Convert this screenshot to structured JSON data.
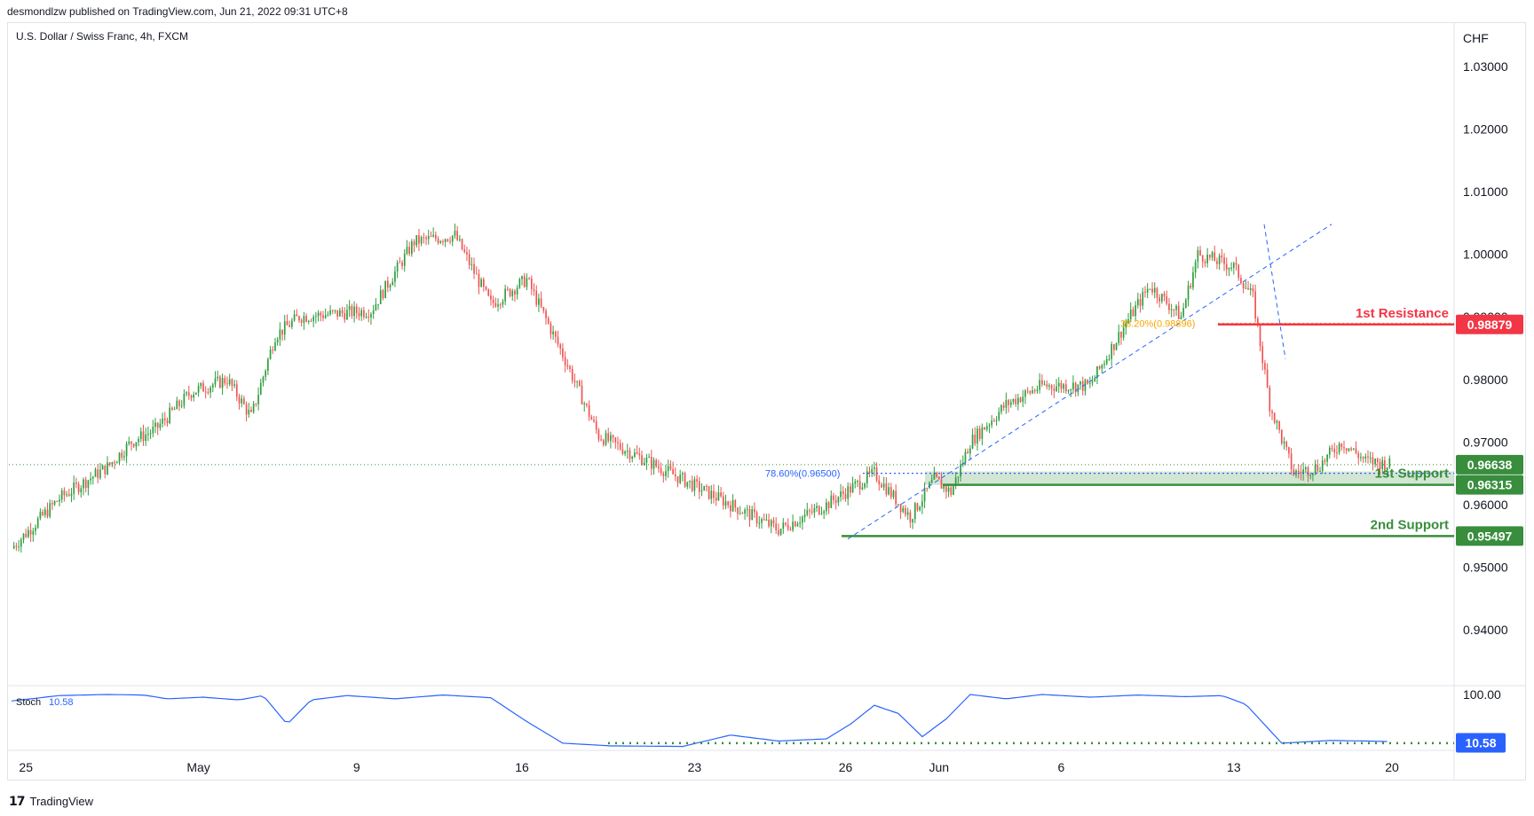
{
  "header": {
    "published": "desmondlzw published on TradingView.com, Jun 21, 2022 09:31 UTC+8",
    "symbol": "U.S. Dollar / Swiss Franc, 4h, FXCM"
  },
  "footer": {
    "brand": "TradingView"
  },
  "colors": {
    "up": "#26a69a",
    "up_body": "#2e9e3d",
    "down": "#ef5350",
    "resistance": "#f23645",
    "support": "#388e3c",
    "fib": "#2962ff",
    "stoch": "#2962ff"
  },
  "chart_data": {
    "type": "candlestick",
    "currency": "CHF",
    "y_axis": {
      "range": [
        0.9385,
        1.0385
      ],
      "ticks": [
        "1.03000",
        "1.02000",
        "1.01000",
        "1.00000",
        "0.99000",
        "0.98000",
        "0.97000",
        "0.96000",
        "0.95000",
        "0.94000"
      ]
    },
    "x_axis": {
      "labels": [
        "25",
        "May",
        "9",
        "16",
        "23",
        "26",
        "Jun",
        "6",
        "13",
        "20"
      ]
    },
    "series_anchor_closes": [
      [
        0,
        0.953
      ],
      [
        20,
        0.961
      ],
      [
        40,
        0.966
      ],
      [
        50,
        0.97
      ],
      [
        60,
        0.972
      ],
      [
        75,
        0.978
      ],
      [
        90,
        0.98
      ],
      [
        100,
        0.974
      ],
      [
        110,
        0.987
      ],
      [
        120,
        0.99
      ],
      [
        150,
        0.991
      ],
      [
        168,
        1.002
      ],
      [
        185,
        1.003
      ],
      [
        200,
        0.992
      ],
      [
        215,
        0.996
      ],
      [
        230,
        0.984
      ],
      [
        245,
        0.971
      ],
      [
        260,
        0.968
      ],
      [
        280,
        0.964
      ],
      [
        300,
        0.96
      ],
      [
        320,
        0.956
      ],
      [
        340,
        0.96
      ],
      [
        360,
        0.965
      ],
      [
        375,
        0.958
      ],
      [
        385,
        0.964
      ],
      [
        392,
        0.962
      ],
      [
        400,
        0.97
      ],
      [
        415,
        0.976
      ],
      [
        430,
        0.979
      ],
      [
        450,
        0.979
      ],
      [
        465,
        0.989
      ],
      [
        475,
        0.995
      ],
      [
        488,
        0.99
      ],
      [
        495,
        1.0
      ],
      [
        510,
        0.998
      ],
      [
        518,
        0.993
      ],
      [
        525,
        0.976
      ],
      [
        535,
        0.965
      ],
      [
        545,
        0.966
      ],
      [
        555,
        0.97
      ],
      [
        565,
        0.967
      ],
      [
        575,
        0.9664
      ]
    ],
    "current_price": "0.96638",
    "levels": [
      {
        "label": "1st Resistance",
        "price": "0.98879"
      },
      {
        "label": "1st Support",
        "price": "0.96315"
      },
      {
        "label": "2nd Support",
        "price": "0.95497"
      }
    ],
    "fib_levels": [
      {
        "label": "78.60%(0.96500)",
        "price": 0.965
      },
      {
        "label": "38.20%(0.98896)",
        "price": 0.98896
      }
    ],
    "stochastic": {
      "name": "Stoch",
      "value": "10.58",
      "range": [
        0,
        100
      ],
      "axis_label": "100.00",
      "oversold_level": 10,
      "anchors": [
        [
          0,
          88
        ],
        [
          20,
          98
        ],
        [
          40,
          100
        ],
        [
          55,
          99
        ],
        [
          65,
          92
        ],
        [
          80,
          95
        ],
        [
          95,
          90
        ],
        [
          105,
          98
        ],
        [
          115,
          45
        ],
        [
          125,
          90
        ],
        [
          140,
          98
        ],
        [
          160,
          92
        ],
        [
          180,
          99
        ],
        [
          200,
          94
        ],
        [
          215,
          50
        ],
        [
          230,
          10
        ],
        [
          250,
          5
        ],
        [
          280,
          4
        ],
        [
          300,
          25
        ],
        [
          320,
          14
        ],
        [
          340,
          18
        ],
        [
          350,
          45
        ],
        [
          360,
          80
        ],
        [
          370,
          65
        ],
        [
          380,
          22
        ],
        [
          390,
          55
        ],
        [
          400,
          100
        ],
        [
          415,
          92
        ],
        [
          430,
          100
        ],
        [
          450,
          95
        ],
        [
          470,
          99
        ],
        [
          490,
          96
        ],
        [
          505,
          98
        ],
        [
          515,
          82
        ],
        [
          530,
          10
        ],
        [
          550,
          15
        ],
        [
          565,
          14
        ],
        [
          575,
          13
        ]
      ]
    }
  }
}
